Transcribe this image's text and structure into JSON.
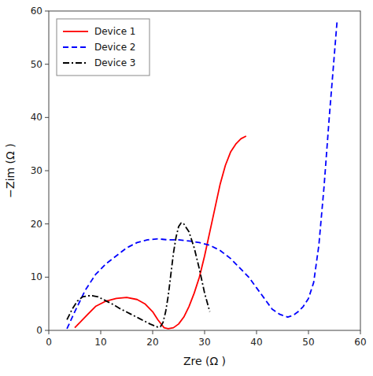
{
  "chart_data": {
    "type": "line",
    "x_label": "Zre (Ω )",
    "y_label": "−Zim (Ω )",
    "xlim": [
      0,
      60
    ],
    "ylim": [
      0,
      60
    ],
    "xticks": [
      0,
      10,
      20,
      30,
      40,
      50,
      60
    ],
    "yticks": [
      0,
      10,
      20,
      30,
      40,
      50,
      60
    ],
    "grid": false,
    "legend": "upper left",
    "series": [
      {
        "name": "Device 1",
        "color": "#ff0000",
        "line_style": "solid",
        "x": [
          5.0,
          6.0,
          7.5,
          9.0,
          11.0,
          13.0,
          15.0,
          17.0,
          18.5,
          20.0,
          21.0,
          21.8,
          22.2,
          23.0,
          24.0,
          25.0,
          26.0,
          27.0,
          28.0,
          29.0,
          30.0,
          31.0,
          32.0,
          33.0,
          34.0,
          35.0,
          36.0,
          37.0,
          38.0
        ],
        "values": [
          0.5,
          1.5,
          3.0,
          4.5,
          5.5,
          6.0,
          6.2,
          5.8,
          5.0,
          3.5,
          2.0,
          1.0,
          0.5,
          0.3,
          0.5,
          1.2,
          2.5,
          4.5,
          7.0,
          10.0,
          14.0,
          18.5,
          23.0,
          27.5,
          31.0,
          33.5,
          35.0,
          36.0,
          36.5
        ]
      },
      {
        "name": "Device 2",
        "color": "#0000ff",
        "line_style": "dashed",
        "x": [
          3.5,
          5.0,
          7.0,
          9.0,
          11.0,
          13.0,
          15.0,
          17.0,
          19.0,
          21.0,
          23.0,
          25.0,
          27.0,
          29.0,
          31.0,
          33.0,
          35.0,
          37.0,
          38.5,
          40.0,
          41.5,
          43.0,
          44.5,
          46.0,
          47.0,
          48.0,
          49.0,
          50.0,
          51.0,
          52.0,
          53.0,
          54.0,
          55.0,
          55.5
        ],
        "values": [
          0.3,
          3.5,
          7.5,
          10.5,
          12.5,
          14.0,
          15.5,
          16.5,
          17.0,
          17.2,
          17.0,
          17.0,
          16.8,
          16.5,
          16.0,
          15.0,
          13.5,
          11.5,
          10.0,
          8.0,
          6.0,
          4.0,
          3.0,
          2.5,
          2.8,
          3.5,
          4.5,
          6.0,
          9.0,
          16.0,
          27.0,
          40.0,
          52.0,
          58.0
        ]
      },
      {
        "name": "Device 3",
        "color": "#000000",
        "line_style": "dashdot",
        "x": [
          3.5,
          4.5,
          5.5,
          6.5,
          7.5,
          8.5,
          9.5,
          10.5,
          11.5,
          12.5,
          13.5,
          14.5,
          15.5,
          16.5,
          17.5,
          18.5,
          19.5,
          20.5,
          21.0,
          21.5,
          22.0,
          22.5,
          23.0,
          23.5,
          24.0,
          24.5,
          25.0,
          25.5,
          26.0,
          27.0,
          28.0,
          29.0,
          30.0,
          31.0
        ],
        "values": [
          2.0,
          4.0,
          5.5,
          6.3,
          6.5,
          6.5,
          6.3,
          5.8,
          5.3,
          4.8,
          4.2,
          3.7,
          3.2,
          2.7,
          2.2,
          1.7,
          1.2,
          0.8,
          0.6,
          0.7,
          1.5,
          3.5,
          6.5,
          10.5,
          14.5,
          17.5,
          19.5,
          20.2,
          20.0,
          18.5,
          15.5,
          11.5,
          7.0,
          3.5
        ]
      }
    ]
  }
}
